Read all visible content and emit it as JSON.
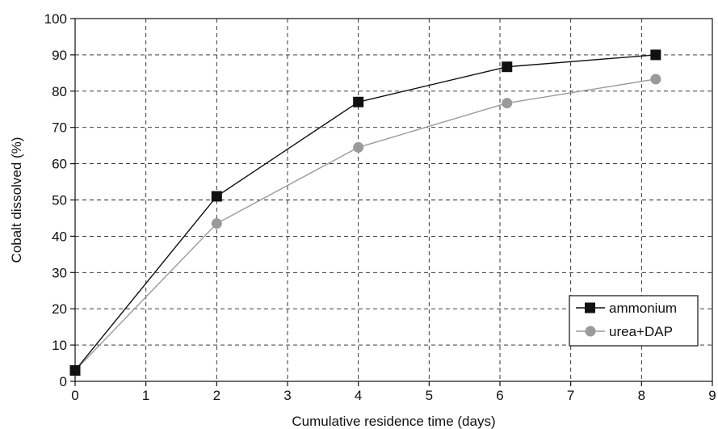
{
  "chart_data": {
    "type": "line",
    "xlabel": "Cumulative residence time (days)",
    "ylabel": "Cobalt dissolved (%)",
    "xlim": [
      0,
      9
    ],
    "ylim": [
      0,
      100
    ],
    "xticks": [
      0,
      1,
      2,
      3,
      4,
      5,
      6,
      7,
      8,
      9
    ],
    "yticks": [
      0,
      10,
      20,
      30,
      40,
      50,
      60,
      70,
      80,
      90,
      100
    ],
    "grid": true,
    "grid_style": "dashed",
    "legend_position": "bottom-right",
    "series": [
      {
        "name": "ammonium",
        "marker": "square",
        "color": "#111111",
        "x": [
          0,
          2,
          4,
          6.1,
          8.2
        ],
        "y": [
          3,
          51,
          77,
          86.7,
          90
        ]
      },
      {
        "name": "urea+DAP",
        "marker": "circle",
        "color": "#9a9a9a",
        "x": [
          0,
          2,
          4,
          6.1,
          8.2
        ],
        "y": [
          3,
          43.5,
          64.5,
          76.7,
          83.3
        ]
      }
    ]
  }
}
